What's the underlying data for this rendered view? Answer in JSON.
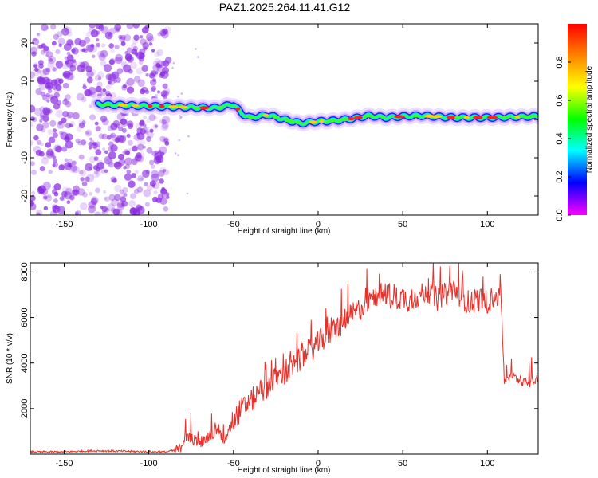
{
  "title": "PAZ1.2025.264.11.41.G12",
  "colors": {
    "noise": "#8a2be2",
    "snr_line": "#e8302a",
    "colorbar": [
      "#ff00ff",
      "#0000ff",
      "#00ffff",
      "#00ff00",
      "#ffff00",
      "#ff7f00",
      "#ff0000"
    ]
  },
  "chart_data": [
    {
      "type": "heatmap",
      "title": "PAZ1.2025.264.11.41.G12",
      "xlabel": "Height of straight line (km)",
      "ylabel": "Frequency (Hz)",
      "xlim": [
        -170,
        130
      ],
      "ylim": [
        -25,
        25
      ],
      "x_ticks": [
        "-150",
        "-100",
        "-50",
        "0",
        "50",
        "100"
      ],
      "y_ticks": [
        "-20",
        "-10",
        "0",
        "10",
        "20"
      ],
      "colorbar": {
        "label": "Normalized spectral amplitude",
        "range": [
          0,
          1
        ],
        "ticks": [
          "0.0",
          "0.2",
          "0.4",
          "0.6",
          "0.8"
        ]
      },
      "noise_region_x": [
        -170,
        -90
      ],
      "signal_start_x": -130,
      "signal_track": {
        "x": [
          -130,
          -100,
          -60,
          -50,
          -45,
          -40,
          -30,
          -20,
          -10,
          0,
          10,
          20,
          30,
          40,
          50,
          60,
          80,
          100,
          128
        ],
        "y": [
          4,
          3.5,
          3,
          4,
          1.5,
          0.5,
          1.2,
          0,
          -1,
          -0.5,
          -0.3,
          0.2,
          1,
          0.5,
          0.8,
          1,
          0.5,
          0.5,
          0.8
        ]
      }
    },
    {
      "type": "line",
      "xlabel": "Height of straight line (km)",
      "ylabel": "SNR (10 * v/v)",
      "xlim": [
        -170,
        130
      ],
      "ylim": [
        0,
        8400
      ],
      "x_ticks": [
        "-150",
        "-100",
        "-50",
        "0",
        "50",
        "100"
      ],
      "y_ticks": [
        "2000",
        "4000",
        "6000",
        "8000"
      ],
      "series": [
        {
          "x": [
            -170,
            -150,
            -130,
            -110,
            -90,
            -82,
            -78,
            -70,
            -65,
            -60,
            -55,
            -50,
            -45,
            -40,
            -35,
            -30,
            -25,
            -20,
            -15,
            -10,
            -5,
            0,
            5,
            10,
            15,
            20,
            25,
            30,
            35,
            40,
            45,
            50,
            55,
            60,
            65,
            70,
            75,
            80,
            85,
            90,
            95,
            100,
            105,
            108,
            110,
            115,
            120,
            125,
            130
          ],
          "y": [
            100,
            100,
            150,
            120,
            100,
            200,
            800,
            500,
            700,
            1000,
            600,
            1500,
            2000,
            2300,
            2700,
            3000,
            3400,
            3500,
            3800,
            4200,
            4500,
            4900,
            5200,
            5500,
            5800,
            6100,
            6400,
            6700,
            7000,
            7000,
            6800,
            6900,
            6700,
            7000,
            7200,
            6800,
            7000,
            7300,
            6900,
            6600,
            6800,
            6700,
            6900,
            7000,
            3200,
            3400,
            3200,
            3100,
            3300
          ]
        }
      ]
    }
  ]
}
